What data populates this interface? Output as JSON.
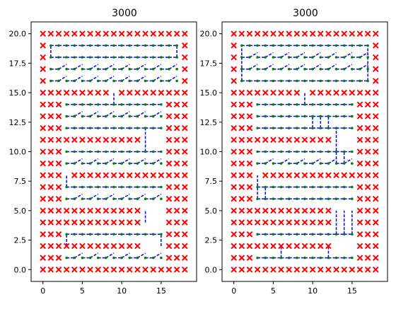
{
  "colors": {
    "obstacle": "#ff0000",
    "node": "#008000",
    "edge": "#0000ff",
    "axis": "#000000"
  },
  "chart_data": [
    {
      "type": "scatter",
      "title": "3000",
      "xlim": [
        -1.5,
        19.5
      ],
      "ylim": [
        -1.0,
        21.0
      ],
      "xticks": [
        0,
        5,
        10,
        15
      ],
      "yticks": [
        0.0,
        2.5,
        5.0,
        7.5,
        10.0,
        12.5,
        15.0,
        17.5,
        20.0
      ],
      "xtick_labels": [
        "0",
        "5",
        "10",
        "15"
      ],
      "ytick_labels": [
        "0.0",
        "2.5",
        "5.0",
        "7.5",
        "10.0",
        "12.5",
        "15.0",
        "17.5",
        "20.0"
      ],
      "grid": false,
      "obstacle_rows": [
        {
          "y": 20,
          "ranges": [
            [
              0,
              18
            ]
          ]
        },
        {
          "y": 19,
          "ranges": [
            [
              0,
              0
            ],
            [
              18,
              18
            ]
          ]
        },
        {
          "y": 18,
          "ranges": [
            [
              0,
              0
            ],
            [
              18,
              18
            ]
          ]
        },
        {
          "y": 17,
          "ranges": [
            [
              0,
              0
            ],
            [
              18,
              18
            ]
          ]
        },
        {
          "y": 16,
          "ranges": [
            [
              0,
              0
            ],
            [
              18,
              18
            ]
          ]
        },
        {
          "y": 15,
          "ranges": [
            [
              0,
              8
            ],
            [
              10,
              18
            ]
          ]
        },
        {
          "y": 14,
          "ranges": [
            [
              0,
              2
            ],
            [
              16,
              18
            ]
          ]
        },
        {
          "y": 13,
          "ranges": [
            [
              0,
              2
            ],
            [
              16,
              18
            ]
          ]
        },
        {
          "y": 12,
          "ranges": [
            [
              0,
              2
            ],
            [
              16,
              18
            ]
          ]
        },
        {
          "y": 11,
          "ranges": [
            [
              0,
              12
            ],
            [
              16,
              18
            ]
          ]
        },
        {
          "y": 10,
          "ranges": [
            [
              0,
              2
            ],
            [
              16,
              18
            ]
          ]
        },
        {
          "y": 9,
          "ranges": [
            [
              0,
              2
            ],
            [
              16,
              18
            ]
          ]
        },
        {
          "y": 8,
          "ranges": [
            [
              0,
              2
            ],
            [
              4,
              18
            ]
          ]
        },
        {
          "y": 7,
          "ranges": [
            [
              0,
              2
            ],
            [
              16,
              18
            ]
          ]
        },
        {
          "y": 6,
          "ranges": [
            [
              0,
              2
            ],
            [
              16,
              18
            ]
          ]
        },
        {
          "y": 5,
          "ranges": [
            [
              0,
              12
            ],
            [
              16,
              18
            ]
          ]
        },
        {
          "y": 4,
          "ranges": [
            [
              0,
              12
            ],
            [
              16,
              18
            ]
          ]
        },
        {
          "y": 3,
          "ranges": [
            [
              0,
              2
            ],
            [
              16,
              18
            ]
          ]
        },
        {
          "y": 2,
          "ranges": [
            [
              0,
              12
            ],
            [
              16,
              18
            ]
          ]
        },
        {
          "y": 1,
          "ranges": [
            [
              0,
              2
            ],
            [
              16,
              18
            ]
          ]
        },
        {
          "y": 0,
          "ranges": [
            [
              0,
              18
            ]
          ]
        }
      ],
      "path_rows": [
        {
          "y": 19,
          "x_from": 1,
          "x_to": 17,
          "slant": 0
        },
        {
          "y": 18,
          "x_from": 1,
          "x_to": 17,
          "slant": 0
        },
        {
          "y": 17,
          "x_from": 1,
          "x_to": 17,
          "slant": 1
        },
        {
          "y": 16,
          "x_from": 1,
          "x_to": 17,
          "slant": 1
        },
        {
          "y": 14,
          "x_from": 3,
          "x_to": 15,
          "slant": 0
        },
        {
          "y": 13,
          "x_from": 3,
          "x_to": 15,
          "slant": 1
        },
        {
          "y": 12,
          "x_from": 3,
          "x_to": 15,
          "slant": 0
        },
        {
          "y": 10,
          "x_from": 3,
          "x_to": 15,
          "slant": 0
        },
        {
          "y": 9,
          "x_from": 3,
          "x_to": 15,
          "slant": 1
        },
        {
          "y": 7,
          "x_from": 3,
          "x_to": 15,
          "slant": 0
        },
        {
          "y": 6,
          "x_from": 3,
          "x_to": 15,
          "slant": 1
        },
        {
          "y": 3,
          "x_from": 3,
          "x_to": 15,
          "slant": 0
        },
        {
          "y": 1,
          "x_from": 3,
          "x_to": 15,
          "slant": 1
        }
      ],
      "vertical_links": [
        {
          "x": 1,
          "y_from": 18,
          "y_to": 19
        },
        {
          "x": 17,
          "y_from": 18,
          "y_to": 19
        },
        {
          "x": 9,
          "y_from": 14,
          "y_to": 15
        },
        {
          "x": 13,
          "y_from": 10,
          "y_to": 12
        },
        {
          "x": 13,
          "y_from": 4,
          "y_to": 5
        },
        {
          "x": 3,
          "y_from": 7,
          "y_to": 8
        },
        {
          "x": 3,
          "y_from": 2,
          "y_to": 3
        },
        {
          "x": 15,
          "y_from": 2,
          "y_to": 3
        }
      ]
    },
    {
      "type": "scatter",
      "title": "3000",
      "xlim": [
        -1.5,
        19.5
      ],
      "ylim": [
        -1.0,
        21.0
      ],
      "xticks": [
        0,
        5,
        10,
        15
      ],
      "yticks": [
        0.0,
        2.5,
        5.0,
        7.5,
        10.0,
        12.5,
        15.0,
        17.5,
        20.0
      ],
      "xtick_labels": [
        "0",
        "5",
        "10",
        "15"
      ],
      "ytick_labels": [
        "0.0",
        "2.5",
        "5.0",
        "7.5",
        "10.0",
        "12.5",
        "15.0",
        "17.5",
        "20.0"
      ],
      "grid": false,
      "obstacle_rows": [
        {
          "y": 20,
          "ranges": [
            [
              0,
              18
            ]
          ]
        },
        {
          "y": 19,
          "ranges": [
            [
              0,
              0
            ],
            [
              18,
              18
            ]
          ]
        },
        {
          "y": 18,
          "ranges": [
            [
              0,
              0
            ],
            [
              18,
              18
            ]
          ]
        },
        {
          "y": 17,
          "ranges": [
            [
              0,
              0
            ],
            [
              18,
              18
            ]
          ]
        },
        {
          "y": 16,
          "ranges": [
            [
              0,
              0
            ],
            [
              18,
              18
            ]
          ]
        },
        {
          "y": 15,
          "ranges": [
            [
              0,
              8
            ],
            [
              10,
              18
            ]
          ]
        },
        {
          "y": 14,
          "ranges": [
            [
              0,
              2
            ],
            [
              16,
              18
            ]
          ]
        },
        {
          "y": 13,
          "ranges": [
            [
              0,
              2
            ],
            [
              16,
              18
            ]
          ]
        },
        {
          "y": 12,
          "ranges": [
            [
              0,
              2
            ],
            [
              16,
              18
            ]
          ]
        },
        {
          "y": 11,
          "ranges": [
            [
              0,
              12
            ],
            [
              16,
              18
            ]
          ]
        },
        {
          "y": 10,
          "ranges": [
            [
              0,
              2
            ],
            [
              16,
              18
            ]
          ]
        },
        {
          "y": 9,
          "ranges": [
            [
              0,
              2
            ],
            [
              16,
              18
            ]
          ]
        },
        {
          "y": 8,
          "ranges": [
            [
              0,
              2
            ],
            [
              4,
              18
            ]
          ]
        },
        {
          "y": 7,
          "ranges": [
            [
              0,
              2
            ],
            [
              16,
              18
            ]
          ]
        },
        {
          "y": 6,
          "ranges": [
            [
              0,
              2
            ],
            [
              16,
              18
            ]
          ]
        },
        {
          "y": 5,
          "ranges": [
            [
              0,
              12
            ],
            [
              16,
              18
            ]
          ]
        },
        {
          "y": 4,
          "ranges": [
            [
              0,
              12
            ],
            [
              16,
              18
            ]
          ]
        },
        {
          "y": 3,
          "ranges": [
            [
              0,
              2
            ],
            [
              16,
              18
            ]
          ]
        },
        {
          "y": 2,
          "ranges": [
            [
              0,
              12
            ],
            [
              16,
              18
            ]
          ]
        },
        {
          "y": 1,
          "ranges": [
            [
              0,
              2
            ],
            [
              16,
              18
            ]
          ]
        },
        {
          "y": 0,
          "ranges": [
            [
              0,
              18
            ]
          ]
        }
      ],
      "path_rows": [
        {
          "y": 19,
          "x_from": 1,
          "x_to": 17,
          "slant": 0
        },
        {
          "y": 18,
          "x_from": 1,
          "x_to": 17,
          "slant": 1
        },
        {
          "y": 17,
          "x_from": 1,
          "x_to": 17,
          "slant": 1
        },
        {
          "y": 16,
          "x_from": 1,
          "x_to": 17,
          "slant": 0
        },
        {
          "y": 14,
          "x_from": 3,
          "x_to": 15,
          "slant": 0
        },
        {
          "y": 13,
          "x_from": 3,
          "x_to": 15,
          "slant": 0
        },
        {
          "y": 12,
          "x_from": 3,
          "x_to": 15,
          "slant": 0
        },
        {
          "y": 10,
          "x_from": 3,
          "x_to": 15,
          "slant": 0
        },
        {
          "y": 9,
          "x_from": 3,
          "x_to": 15,
          "slant": 1
        },
        {
          "y": 7,
          "x_from": 3,
          "x_to": 15,
          "slant": 0
        },
        {
          "y": 6,
          "x_from": 3,
          "x_to": 15,
          "slant": 0
        },
        {
          "y": 3,
          "x_from": 3,
          "x_to": 15,
          "slant": 0
        },
        {
          "y": 1,
          "x_from": 3,
          "x_to": 15,
          "slant": 0
        }
      ],
      "vertical_links": [
        {
          "x": 1,
          "y_from": 16,
          "y_to": 19
        },
        {
          "x": 17,
          "y_from": 16,
          "y_to": 19
        },
        {
          "x": 9,
          "y_from": 14,
          "y_to": 15
        },
        {
          "x": 10,
          "y_from": 12,
          "y_to": 13
        },
        {
          "x": 11,
          "y_from": 12,
          "y_to": 13
        },
        {
          "x": 12,
          "y_from": 12,
          "y_to": 13
        },
        {
          "x": 13,
          "y_from": 9,
          "y_to": 12
        },
        {
          "x": 14,
          "y_from": 9,
          "y_to": 10
        },
        {
          "x": 3,
          "y_from": 6,
          "y_to": 8
        },
        {
          "x": 4,
          "y_from": 6,
          "y_to": 7
        },
        {
          "x": 13,
          "y_from": 3,
          "y_to": 5
        },
        {
          "x": 14,
          "y_from": 3,
          "y_to": 5
        },
        {
          "x": 15,
          "y_from": 3,
          "y_to": 5
        },
        {
          "x": 6,
          "y_from": 1,
          "y_to": 2
        },
        {
          "x": 12,
          "y_from": 1,
          "y_to": 2
        }
      ]
    }
  ]
}
